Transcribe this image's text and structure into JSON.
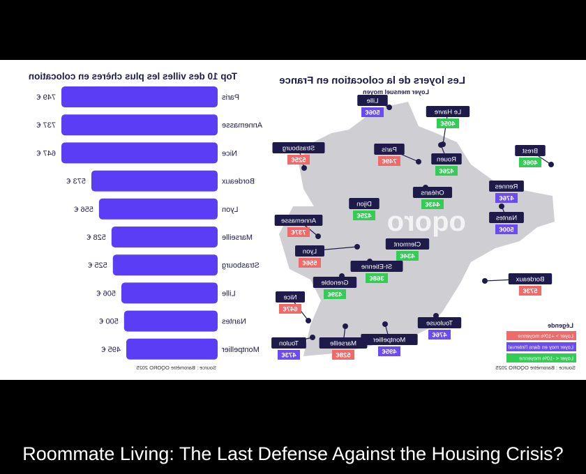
{
  "caption": "Roommate Living: The Last Defense Against the Housing Crisis?",
  "colors": {
    "primary": "#5b3df5",
    "navy": "#1e1b4b",
    "map_fill": "#cfcfd3",
    "above": "#f06a6a",
    "within": "#6a4cf0",
    "below": "#33cc55"
  },
  "chart_data": [
    {
      "type": "bar",
      "title": "Top 10 des villes les plus chères en colocation",
      "categories": [
        "Paris",
        "Annemasse",
        "Nice",
        "Bordeaux",
        "Lyon",
        "Marseille",
        "Strasbourg",
        "Lille",
        "Nantes",
        "Montpellier"
      ],
      "values": [
        749,
        737,
        647,
        573,
        556,
        528,
        525,
        506,
        500,
        495
      ],
      "value_labels": [
        "749 €",
        "737 €",
        "647 €",
        "573 €",
        "556 €",
        "528 €",
        "525 €",
        "506 €",
        "500 €",
        "495 €"
      ],
      "source": "Source : Baromètre OQORO 2025"
    },
    {
      "type": "map",
      "title": "Les loyers de la colocation en France",
      "subtitle": "Loyer mensuel moyen",
      "brand": "oqoro",
      "legend": {
        "title": "Légende",
        "items": [
          {
            "label": "Loyer > +10% moyenne",
            "category": "above"
          },
          {
            "label": "Loyer moy en dans l'interval",
            "category": "within"
          },
          {
            "label": "Loyer < -10% moyenne",
            "category": "below"
          }
        ]
      },
      "source": "Source : Baromètre OQORO 2025",
      "cities": [
        {
          "name": "Lille",
          "rent": "506€",
          "category": "within"
        },
        {
          "name": "Le Havre",
          "rent": "405€",
          "category": "below"
        },
        {
          "name": "Strasbourg",
          "rent": "525€",
          "category": "above"
        },
        {
          "name": "Paris",
          "rent": "749€",
          "category": "above"
        },
        {
          "name": "Rouen",
          "rent": "426€",
          "category": "below"
        },
        {
          "name": "Brest",
          "rent": "406€",
          "category": "below"
        },
        {
          "name": "Rennes",
          "rent": "476€",
          "category": "within"
        },
        {
          "name": "Orléans",
          "rent": "443€",
          "category": "below"
        },
        {
          "name": "Dijon",
          "rent": "425€",
          "category": "below"
        },
        {
          "name": "Nantes",
          "rent": "500€",
          "category": "within"
        },
        {
          "name": "Annemasse",
          "rent": "737€",
          "category": "above"
        },
        {
          "name": "Clermont",
          "rent": "434€",
          "category": "below"
        },
        {
          "name": "Lyon",
          "rent": "556€",
          "category": "above"
        },
        {
          "name": "St-Etienne",
          "rent": "368€",
          "category": "below"
        },
        {
          "name": "Grenoble",
          "rent": "439€",
          "category": "below"
        },
        {
          "name": "Bordeaux",
          "rent": "573€",
          "category": "above"
        },
        {
          "name": "Nice",
          "rent": "647€",
          "category": "above"
        },
        {
          "name": "Toulouse",
          "rent": "476€",
          "category": "within"
        },
        {
          "name": "Montpellier",
          "rent": "495€",
          "category": "within"
        },
        {
          "name": "Marseille",
          "rent": "528€",
          "category": "above"
        },
        {
          "name": "Toulon",
          "rent": "473€",
          "category": "within"
        }
      ]
    }
  ]
}
